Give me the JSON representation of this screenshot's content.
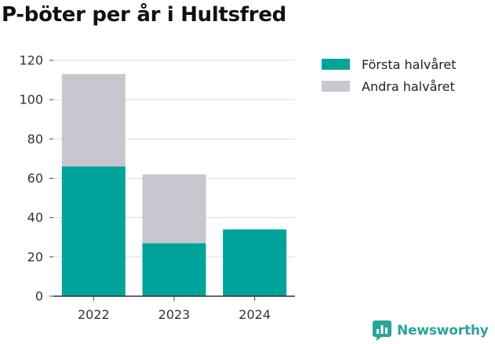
{
  "chart_data": {
    "type": "bar",
    "stacked": true,
    "title": "P-böter per år i Hultsfred",
    "categories": [
      "2022",
      "2023",
      "2024"
    ],
    "series": [
      {
        "name": "Första halvåret",
        "values": [
          66,
          27,
          34
        ],
        "color": "#00a39a"
      },
      {
        "name": "Andra halvåret",
        "values": [
          47,
          35,
          0
        ],
        "color": "#c8c7d0"
      }
    ],
    "ylim": [
      0,
      120
    ],
    "yticks": [
      "0",
      "20",
      "40",
      "60",
      "80",
      "100",
      "120"
    ],
    "grid": true,
    "legend_position": "right"
  },
  "brand": {
    "name": "Newsworthy",
    "icon": "newsworthy-logo-icon",
    "color": "#2aa59a"
  }
}
